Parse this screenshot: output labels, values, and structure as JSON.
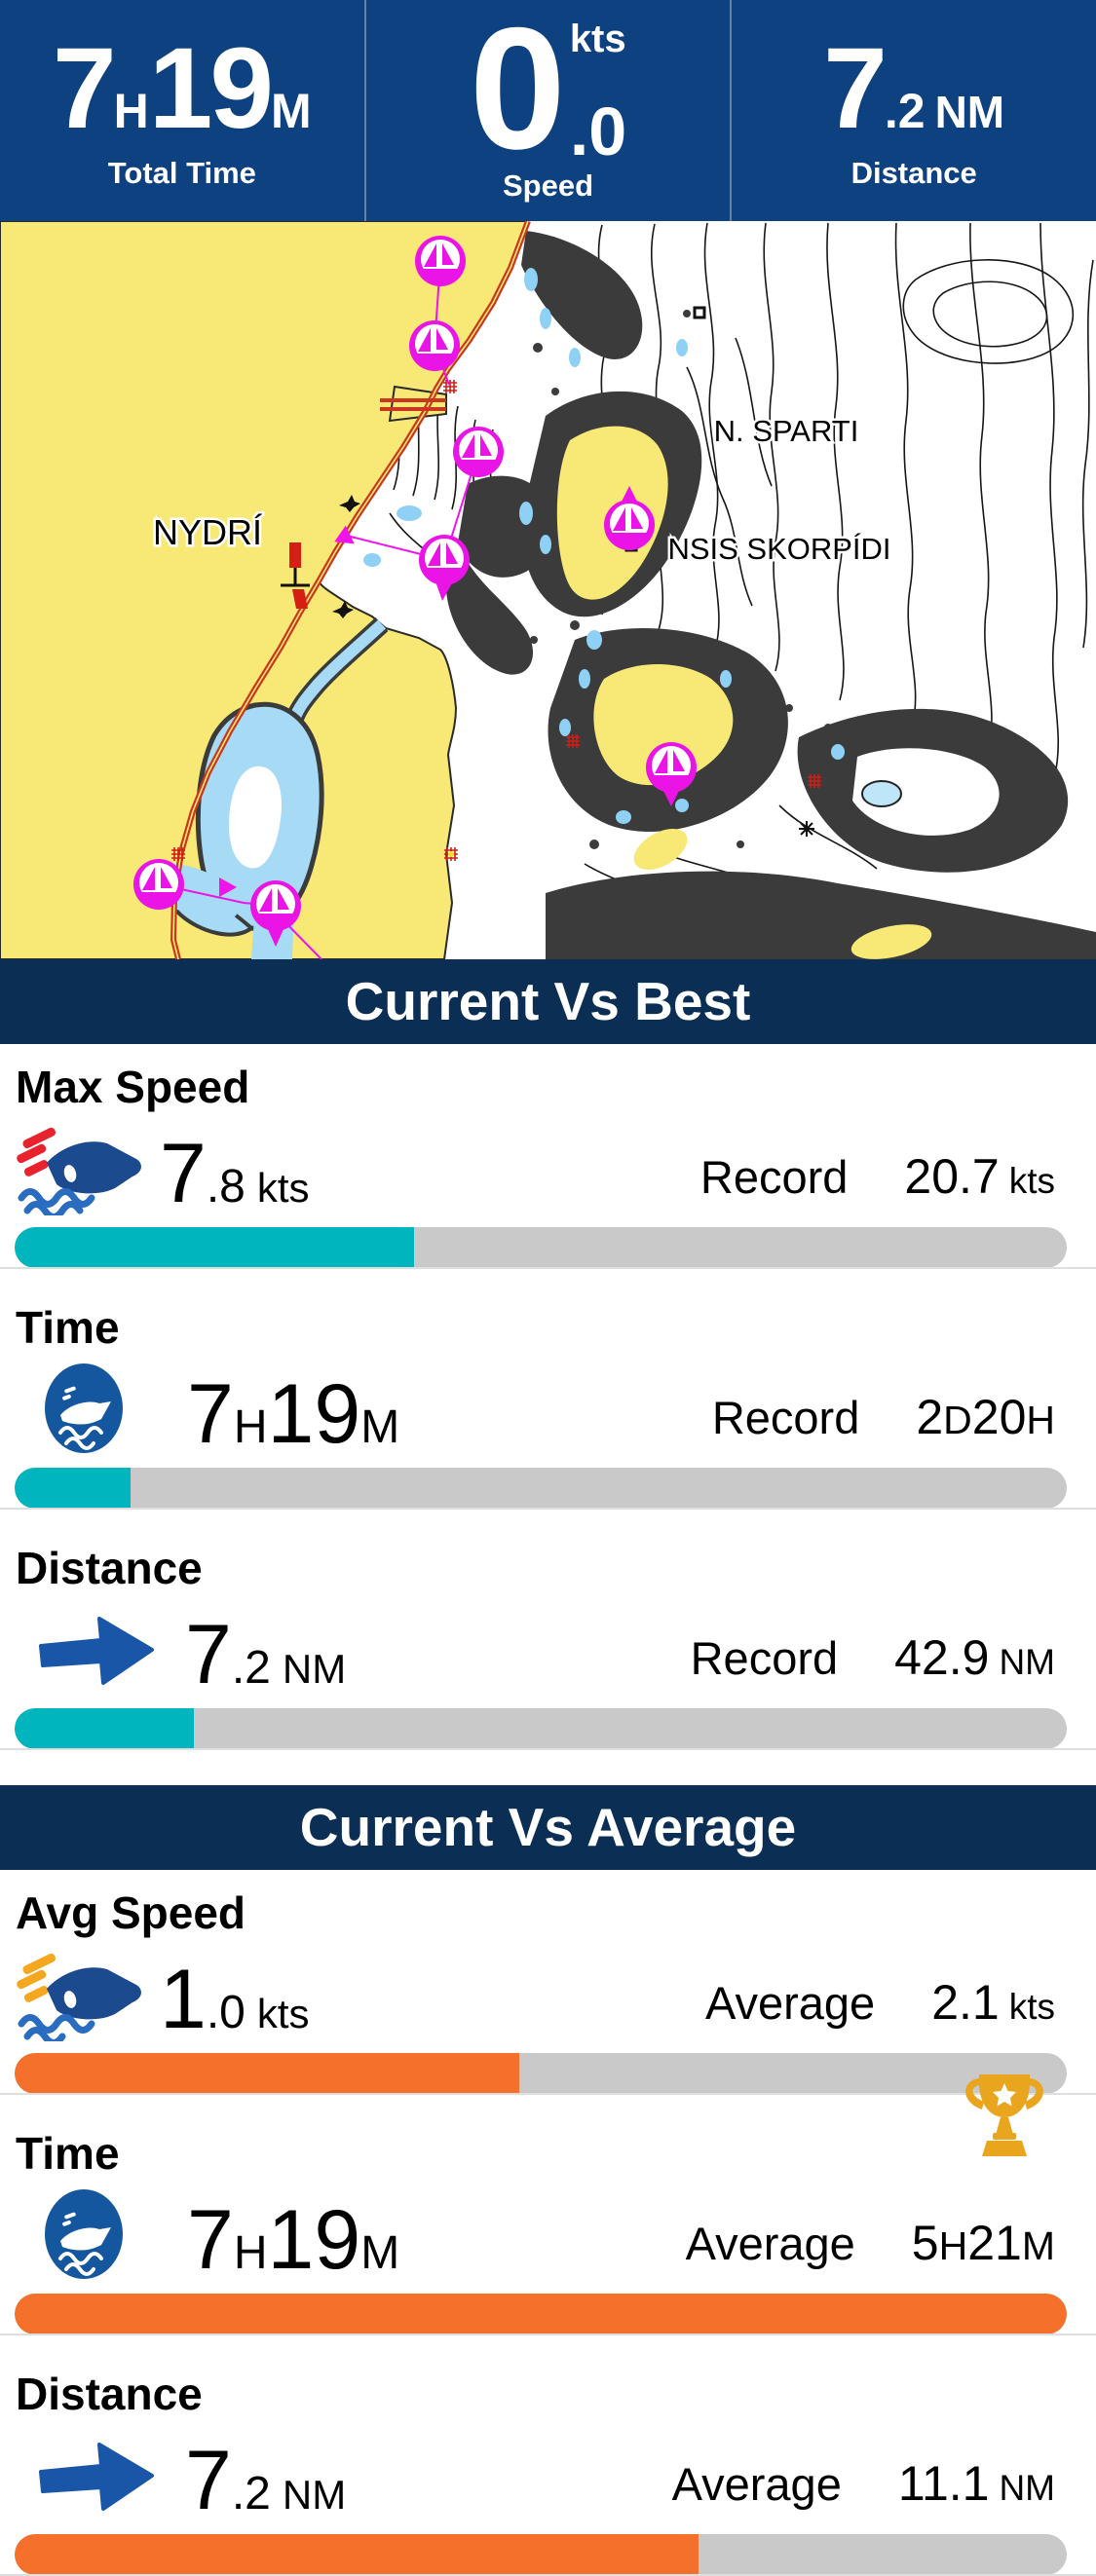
{
  "colors": {
    "header_bg": "#0e4180",
    "section_bg": "#0b2e55",
    "teal": "#00b5bd",
    "orange": "#f5702a",
    "track_gray": "#c9c9c9",
    "map_magenta": "#ea14e6",
    "land_yellow": "#f8e876"
  },
  "header": {
    "total_time": {
      "p1": "7",
      "p2": "H",
      "p3": "19",
      "p4": "M",
      "label": "Total Time"
    },
    "speed": {
      "value": "0",
      "unit": "kts",
      "decimal": ".0",
      "label": "Speed"
    },
    "distance": {
      "p1": "7",
      "p2": ".2",
      "unit": "NM",
      "label": "Distance"
    }
  },
  "map": {
    "labels": [
      {
        "text": "NYDRÍ"
      },
      {
        "text": "N. SPARTI"
      },
      {
        "text": "NSIS SKORPÍDI"
      }
    ]
  },
  "sections": [
    {
      "title": "Current Vs Best",
      "rows": [
        {
          "label": "Max Speed",
          "icon": "speedboat",
          "icon_accent": "#e8232e",
          "v_big1": "7",
          "v_small1": ".8",
          "v_unit": "kts",
          "compare_label": "Record",
          "c_big1": "20.7",
          "c_unit": "kts",
          "percent": 38,
          "bar_color": "#00b5bd"
        },
        {
          "label": "Time",
          "icon": "boat-circle",
          "v_big1": "7",
          "v_small1": "H",
          "v_big2": "19",
          "v_small2": "M",
          "compare_label": "Record",
          "c_big1": "2",
          "c_small1": "D",
          "c_big2": "20",
          "c_small2": "H",
          "percent": 11,
          "bar_color": "#00b5bd"
        },
        {
          "label": "Distance",
          "icon": "arrow-right",
          "v_big1": "7",
          "v_small1": ".2",
          "v_unit": "NM",
          "compare_label": "Record",
          "c_big1": "42.9",
          "c_unit": "NM",
          "percent": 17,
          "bar_color": "#00b5bd"
        }
      ]
    },
    {
      "title": "Current Vs Average",
      "rows": [
        {
          "label": "Avg Speed",
          "icon": "speedboat",
          "icon_accent": "#f5a71f",
          "v_big1": "1",
          "v_small1": ".0",
          "v_unit": "kts",
          "compare_label": "Average",
          "c_big1": "2.1",
          "c_unit": "kts",
          "percent": 48,
          "bar_color": "#f5702a"
        },
        {
          "label": "Time",
          "icon": "boat-circle",
          "trophy": true,
          "v_big1": "7",
          "v_small1": "H",
          "v_big2": "19",
          "v_small2": "M",
          "compare_label": "Average",
          "c_big1": "5",
          "c_small1": "H",
          "c_big2": "21",
          "c_small2": "M",
          "percent": 100,
          "bar_color": "#f5702a"
        },
        {
          "label": "Distance",
          "icon": "arrow-right",
          "v_big1": "7",
          "v_small1": ".2",
          "v_unit": "NM",
          "compare_label": "Average",
          "c_big1": "11.1",
          "c_unit": "NM",
          "percent": 65,
          "bar_color": "#f5702a"
        }
      ]
    }
  ]
}
